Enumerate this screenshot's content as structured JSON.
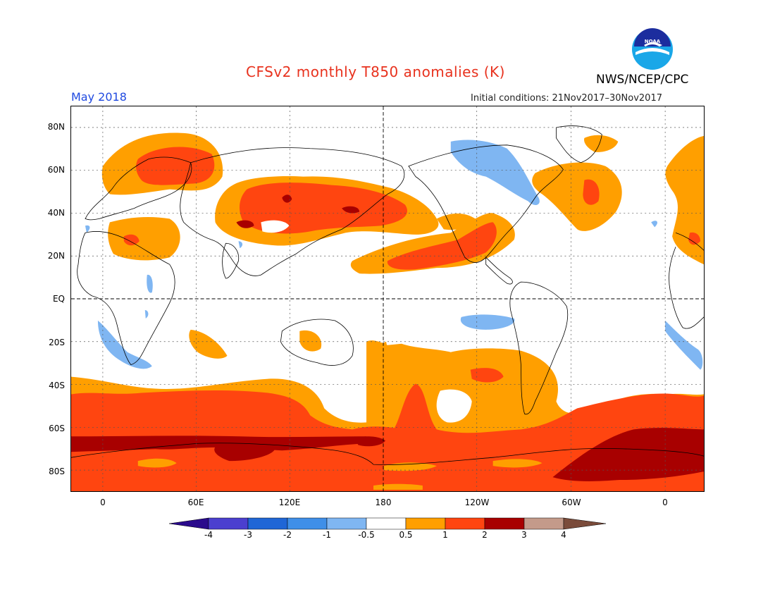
{
  "header": {
    "title": "CFSv2 monthly T850 anomalies (K)",
    "month": "May 2018",
    "initial_conditions": "Initial conditions: 21Nov2017–30Nov2017",
    "agency": "NWS/NCEP/CPC",
    "logo_text": "NOAA"
  },
  "axes": {
    "lat_labels": [
      "80N",
      "60N",
      "40N",
      "20N",
      "EQ",
      "20S",
      "40S",
      "60S",
      "80S"
    ],
    "lon_labels": [
      "0",
      "60E",
      "120E",
      "180",
      "120W",
      "60W",
      "0"
    ]
  },
  "colorbar": {
    "labels": [
      "-4",
      "-3",
      "-2",
      "-1",
      "-0.5",
      "0.5",
      "1",
      "2",
      "3",
      "4"
    ],
    "colors": {
      "lt_neg4": "#2a0a8c",
      "neg4_neg3": "#4b3fcf",
      "neg3_neg2": "#1f66d6",
      "neg2_neg1": "#3f8fe8",
      "neg1_neg05": "#7fb6f2",
      "neutral": "#ffffff",
      "p05_1": "#ff9f00",
      "p1_2": "#ff4510",
      "p2_3": "#a80000",
      "p3_4": "#c49a8a",
      "gt4": "#7a4b3a"
    }
  }
}
